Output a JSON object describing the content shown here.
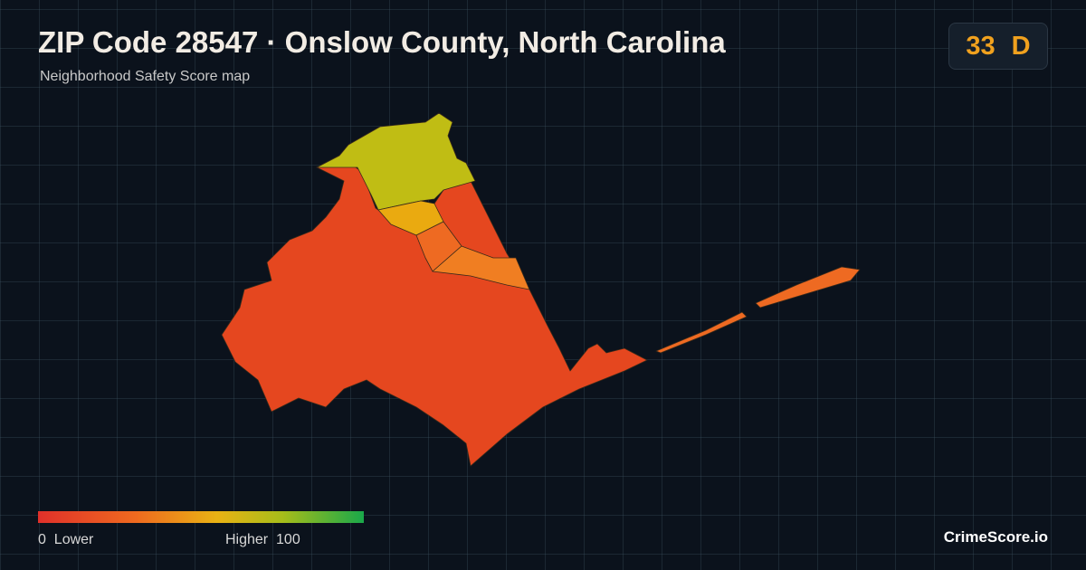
{
  "header": {
    "title": "ZIP Code 28547 · Onslow County, North Carolina",
    "subtitle": "Neighborhood Safety Score map"
  },
  "badge": {
    "score": 33,
    "grade": "D"
  },
  "legend": {
    "min": 0,
    "min_label": "Lower",
    "max_label": "Higher",
    "max": 100
  },
  "brand": "CrimeScore.io"
}
